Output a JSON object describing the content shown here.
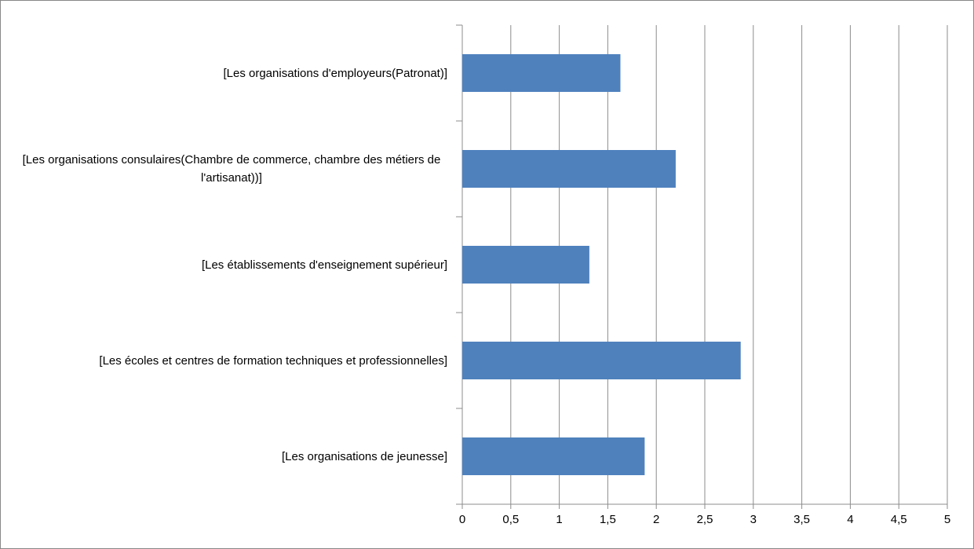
{
  "chart_data": {
    "type": "barh",
    "categories": [
      "[Les organisations d'employeurs(Patronat)]",
      "[Les organisations consulaires(Chambre de commerce, chambre des métiers de l'artisanat))]",
      "[Les établissements d'enseignement supérieur]",
      "[Les écoles et centres de formation techniques et professionnelles]",
      "[Les organisations de jeunesse]"
    ],
    "values": [
      1.63,
      2.2,
      1.31,
      2.87,
      1.88
    ],
    "color": "#4f81bd",
    "xlim": [
      0,
      5
    ],
    "xticks": [
      0,
      {
        "value": 0.5,
        "label": "0,5"
      },
      1,
      {
        "value": 1.5,
        "label": "1,5"
      },
      2,
      {
        "value": 2.5,
        "label": "2,5"
      },
      3,
      {
        "value": 3.5,
        "label": "3,5"
      },
      4,
      {
        "value": 4.5,
        "label": "4,5"
      },
      5
    ],
    "grid": true
  }
}
